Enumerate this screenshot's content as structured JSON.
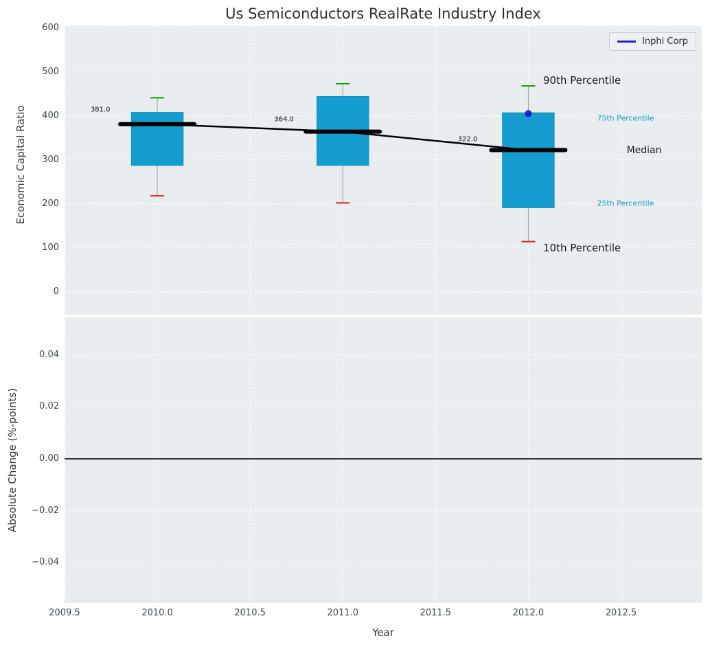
{
  "figure": {
    "title": "Us Semiconductors RealRate Industry Index",
    "background": "#ffffff",
    "plot_bg": "#e9edf0",
    "grid_color": "#ffffff"
  },
  "chart_data": [
    {
      "type": "box",
      "title": "Us Semiconductors RealRate Industry Index",
      "ylabel": "Economic Capital Ratio",
      "xlim": [
        2009.5,
        2012.935
      ],
      "ylim": [
        -52,
        604
      ],
      "xticks": [
        2009.5,
        2010.0,
        2010.5,
        2011.0,
        2011.5,
        2012.0,
        2012.5
      ],
      "xtick_labels": [
        "2009.5",
        "2010.0",
        "2010.5",
        "2011.0",
        "2011.5",
        "2012.0",
        "2012.5"
      ],
      "yticks": [
        0,
        100,
        200,
        300,
        400,
        500,
        600
      ],
      "ytick_labels": [
        "0",
        "100",
        "200",
        "300",
        "400",
        "500",
        "600"
      ],
      "grid": true,
      "box_width": 0.28,
      "median_width": 0.4,
      "legend": {
        "label": "Inphi Corp",
        "position": "upper right"
      },
      "colors": {
        "box": "#149dce",
        "p90_cap": "#0f9e0f",
        "p10_cap": "#e01b1b",
        "median": "#000000",
        "whisker": "#999999",
        "company": "#2121cd"
      },
      "boxes": [
        {
          "x": 2010,
          "median": 381.0,
          "q1": 287,
          "q3": 408,
          "p90": 441,
          "p10": 218,
          "label": "381.0",
          "lx": 2009.64,
          "ly": 413
        },
        {
          "x": 2011,
          "median": 364.0,
          "q1": 287,
          "q3": 444,
          "p90": 473,
          "p10": 202,
          "label": "364.0",
          "lx": 2010.63,
          "ly": 391
        },
        {
          "x": 2012,
          "median": 322.0,
          "q1": 191,
          "q3": 407,
          "p90": 468,
          "p10": 114,
          "label": "322.0",
          "lx": 2011.62,
          "ly": 347
        }
      ],
      "median_line": {
        "x": [
          2010,
          2011,
          2012
        ],
        "y": [
          381,
          364,
          322
        ]
      },
      "company_point": {
        "name": "Inphi Corp",
        "x": 2012,
        "y": 405
      },
      "annotations": [
        {
          "text": "90th Percentile",
          "x": 2012.08,
          "y": 480,
          "color": "#1a1a1a",
          "size": 15
        },
        {
          "text": "75th Percentile",
          "x": 2012.37,
          "y": 394,
          "color": "#149ccd",
          "size": 11
        },
        {
          "text": "Median",
          "x": 2012.53,
          "y": 321,
          "color": "#1a1a1a",
          "size": 14
        },
        {
          "text": "25th Percentile",
          "x": 2012.37,
          "y": 201,
          "color": "#149ccd",
          "size": 11
        },
        {
          "text": "10th Percentile",
          "x": 2012.08,
          "y": 100,
          "color": "#1a1a1a",
          "size": 15
        }
      ]
    },
    {
      "type": "line",
      "xlabel": "Year",
      "ylabel": "Absolute Change (%-points)",
      "xlim": [
        2009.5,
        2012.935
      ],
      "ylim": [
        -0.0555,
        0.0545
      ],
      "yticks": [
        0.04,
        0.02,
        0.0,
        -0.02,
        -0.04
      ],
      "ytick_labels": [
        "0.04",
        "0.02",
        "0.00",
        "−0.02",
        "−0.04"
      ],
      "grid": true,
      "zero_line": true
    }
  ]
}
